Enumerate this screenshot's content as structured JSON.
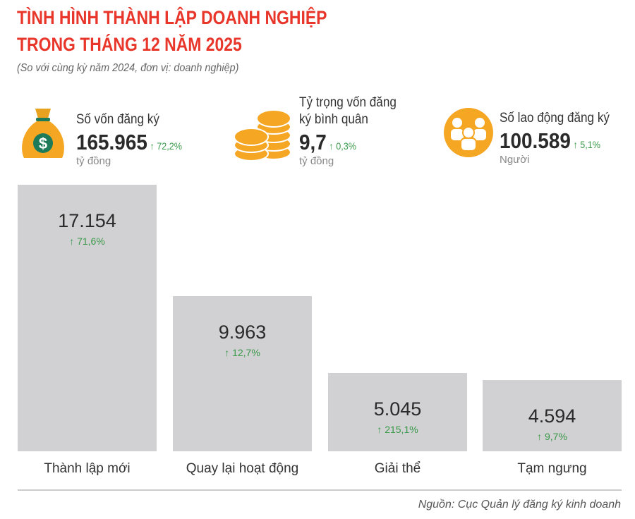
{
  "title_line1": "TÌNH HÌNH THÀNH LẬP DOANH NGHIỆP",
  "title_line2": "TRONG THÁNG 12 NĂM 2025",
  "subtitle": "(So với cùng kỳ năm 2024, đơn vị: doanh nghiệp)",
  "kpis": [
    {
      "label": "Số vốn đăng ký",
      "value": "165.965",
      "change": "↑ 72,2%",
      "unit": "tỷ đồng",
      "icon": "money-bag-icon"
    },
    {
      "label1": "Tỷ trọng vốn đăng",
      "label2": "ký bình quân",
      "value": "9,7",
      "change": "↑ 0,3%",
      "unit": "tỷ đồng",
      "icon": "coins-icon"
    },
    {
      "label": "Số lao động đăng ký",
      "value": "100.589",
      "change": "↑ 5,1%",
      "unit": "Người",
      "icon": "people-icon"
    }
  ],
  "colors": {
    "title": "#e8362b",
    "bar": "#d1d0d2",
    "increase": "#3a9a4a",
    "icon": "#f5a623"
  },
  "chart_data": {
    "type": "bar",
    "categories": [
      "Thành lập mới",
      "Quay lại hoạt động",
      "Giải thể",
      "Tạm ngưng"
    ],
    "values": [
      17154,
      9963,
      5045,
      4594
    ],
    "value_labels": [
      "17.154",
      "9.963",
      "5.045",
      "4.594"
    ],
    "changes": [
      "↑ 71,6%",
      "↑ 12,7%",
      "↑ 215,1%",
      "↑ 9,7%"
    ]
  },
  "source": "Nguồn: Cục Quản lý đăng ký kinh doanh"
}
